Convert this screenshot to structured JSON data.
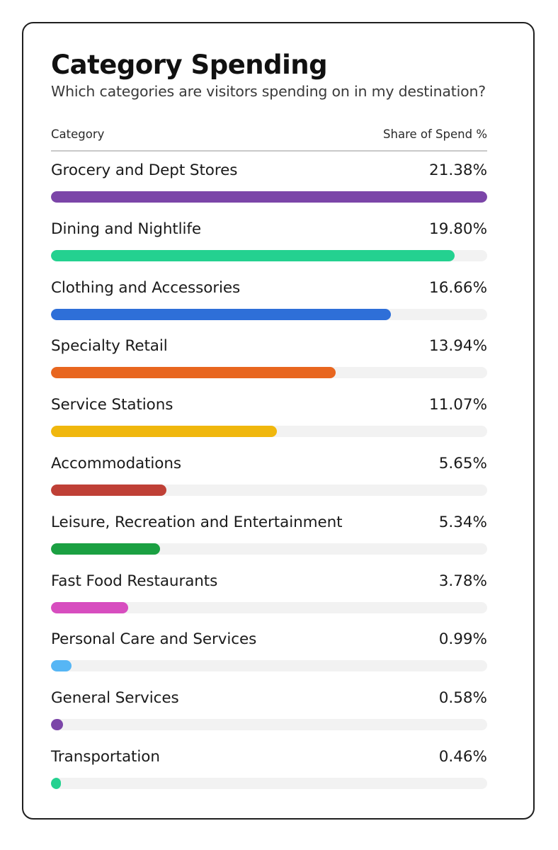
{
  "header": {
    "title": "Category Spending",
    "subtitle": "Which categories are visitors spending on in my destination?"
  },
  "table": {
    "col_category": "Category",
    "col_share": "Share of Spend %"
  },
  "chart_data": {
    "type": "bar",
    "orientation": "horizontal",
    "title": "Category Spending",
    "subtitle": "Which categories are visitors spending on in my destination?",
    "scale_max": 21.38,
    "categories": [
      "Grocery and Dept Stores",
      "Dining and Nightlife",
      "Clothing and Accessories",
      "Specialty Retail",
      "Service Stations",
      "Accommodations",
      "Leisure, Recreation and Entertainment",
      "Fast Food Restaurants",
      "Personal Care and Services",
      "General Services",
      "Transportation"
    ],
    "values": [
      21.38,
      19.8,
      16.66,
      13.94,
      11.07,
      5.65,
      5.34,
      3.78,
      0.99,
      0.58,
      0.46
    ],
    "value_labels": [
      "21.38%",
      "19.80%",
      "16.66%",
      "13.94%",
      "11.07%",
      "5.65%",
      "5.34%",
      "3.78%",
      "0.99%",
      "0.58%",
      "0.46%"
    ],
    "colors": [
      "#7b45a8",
      "#24d190",
      "#2e6fd8",
      "#e8661f",
      "#f0b70d",
      "#bf4036",
      "#1ba042",
      "#d74dbf",
      "#56b6f5",
      "#7b45a8",
      "#24d190"
    ],
    "track_color": "#f2f2f2"
  }
}
